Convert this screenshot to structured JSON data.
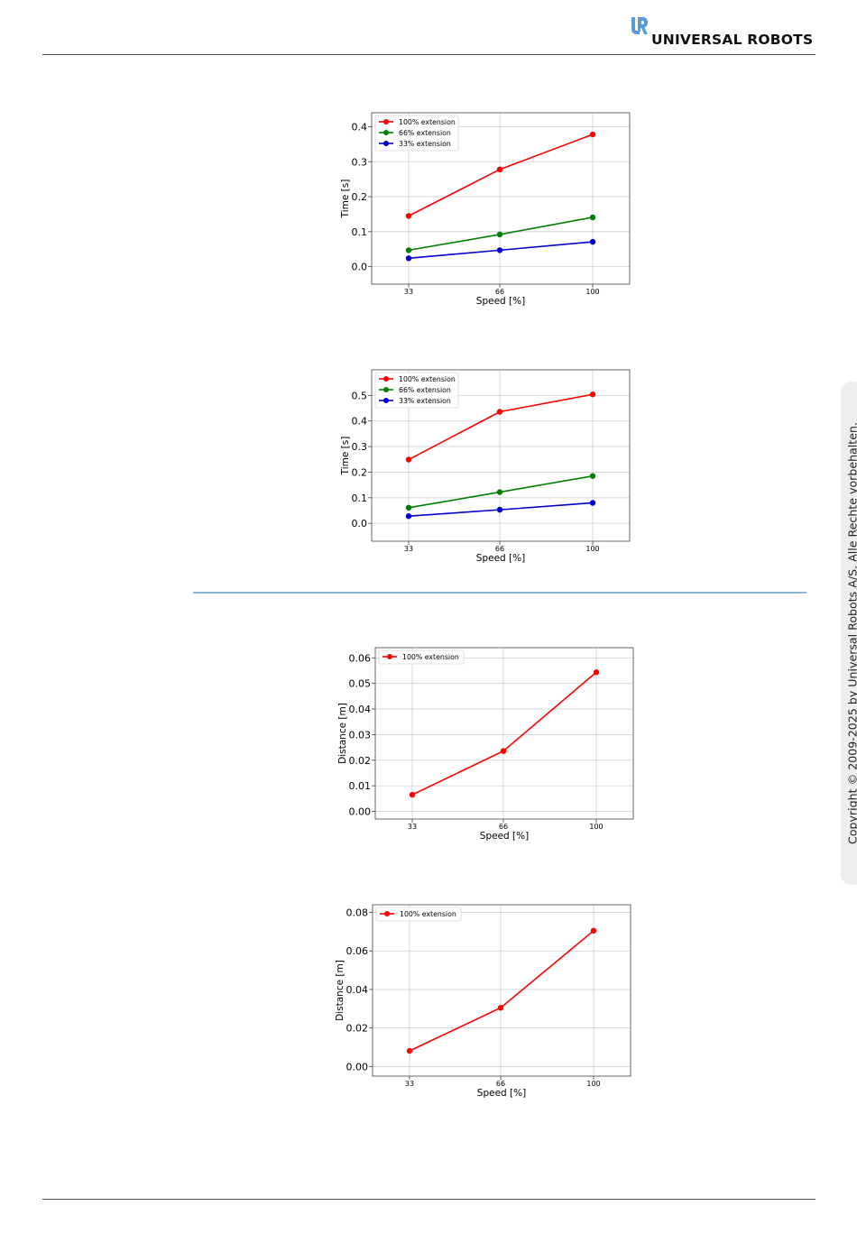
{
  "header": {
    "brand": "UNIVERSAL ROBOTS",
    "logo_icon": "ur-logo-icon"
  },
  "sidebar": {
    "copyright": "Copyright © 2009-2025 by Universal Robots A/S. Alle Rechte vorbehalten."
  },
  "colors": {
    "red": "#ff0000",
    "green": "#008000",
    "blue": "#0000cc",
    "section_rule": "#86b7d9",
    "logo_blue": "#5b9bd5"
  },
  "chart_data": [
    {
      "type": "line",
      "x": [
        33,
        66,
        100
      ],
      "xlabel": "Speed [%]",
      "ylabel": "Time [s]",
      "ylim": [
        -0.05,
        0.44
      ],
      "yticks": [
        0.0,
        0.1,
        0.2,
        0.3,
        0.4
      ],
      "ytick_labels": [
        "0.0",
        "0.1",
        "0.2",
        "0.3",
        "0.4"
      ],
      "grid": true,
      "legend": "top-left",
      "series": [
        {
          "name": "100% extension",
          "color": "#ff0000",
          "values": [
            0.145,
            0.278,
            0.378
          ]
        },
        {
          "name": "66% extension",
          "color": "#008000",
          "values": [
            0.047,
            0.092,
            0.141
          ]
        },
        {
          "name": "33% extension",
          "color": "#0000cc",
          "values": [
            0.024,
            0.047,
            0.071
          ]
        }
      ]
    },
    {
      "type": "line",
      "x": [
        33,
        66,
        100
      ],
      "xlabel": "Speed [%]",
      "ylabel": "Time [s]",
      "ylim": [
        -0.07,
        0.6
      ],
      "yticks": [
        0.0,
        0.1,
        0.2,
        0.3,
        0.4,
        0.5
      ],
      "ytick_labels": [
        "0.0",
        "0.1",
        "0.2",
        "0.3",
        "0.4",
        "0.5"
      ],
      "grid": true,
      "legend": "top-left",
      "series": [
        {
          "name": "100% extension",
          "color": "#ff0000",
          "values": [
            0.249,
            0.436,
            0.504
          ]
        },
        {
          "name": "66% extension",
          "color": "#008000",
          "values": [
            0.061,
            0.122,
            0.185
          ]
        },
        {
          "name": "33% extension",
          "color": "#0000cc",
          "values": [
            0.028,
            0.053,
            0.08
          ]
        }
      ]
    },
    {
      "type": "line",
      "x": [
        33,
        66,
        100
      ],
      "xlabel": "Speed [%]",
      "ylabel": "Distance [m]",
      "ylim": [
        -0.003,
        0.064
      ],
      "yticks": [
        0.0,
        0.01,
        0.02,
        0.03,
        0.04,
        0.05,
        0.06
      ],
      "ytick_labels": [
        "0.00",
        "0.01",
        "0.02",
        "0.03",
        "0.04",
        "0.05",
        "0.06"
      ],
      "grid": true,
      "legend": "top-left",
      "series": [
        {
          "name": "100% extension",
          "color": "#ff0000",
          "values": [
            0.0065,
            0.0236,
            0.0544
          ]
        }
      ]
    },
    {
      "type": "line",
      "x": [
        33,
        66,
        100
      ],
      "xlabel": "Speed [%]",
      "ylabel": "Distance [m]",
      "ylim": [
        -0.005,
        0.084
      ],
      "yticks": [
        0.0,
        0.02,
        0.04,
        0.06,
        0.08
      ],
      "ytick_labels": [
        "0.00",
        "0.02",
        "0.04",
        "0.06",
        "0.08"
      ],
      "grid": true,
      "legend": "top-left",
      "series": [
        {
          "name": "100% extension",
          "color": "#ff0000",
          "values": [
            0.0081,
            0.0305,
            0.0705
          ]
        }
      ]
    }
  ]
}
